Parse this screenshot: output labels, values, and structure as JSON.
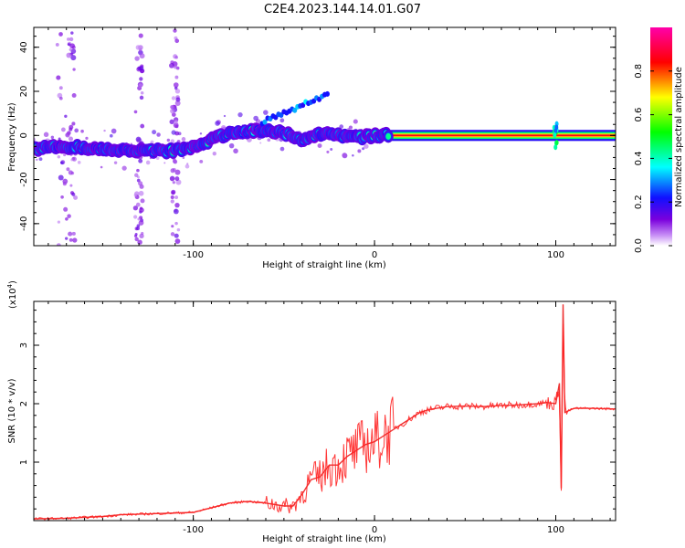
{
  "title": "C2E4.2023.144.14.01.G07",
  "colors": {
    "snr_line": "#ee3333",
    "residual_line": "#ff2222",
    "frame": "#000000"
  },
  "chart_data": [
    {
      "type": "heatmap",
      "name": "spectrogram",
      "xlabel": "Height of straight line (km)",
      "ylabel": "Frequency (Hz)",
      "xlim": [
        -188,
        133
      ],
      "ylim": [
        -50,
        49
      ],
      "xticks": [
        -100,
        0,
        100
      ],
      "xtick_labels": [
        "-100",
        "0",
        "100"
      ],
      "yticks": [
        -40,
        -20,
        0,
        20,
        40
      ],
      "ytick_labels": [
        "-40",
        "-20",
        "0",
        "20",
        "40"
      ],
      "grid": false,
      "colorbar": {
        "label": "Normalized spectral amplitude",
        "range": [
          0,
          1
        ],
        "ticks": [
          0.0,
          0.2,
          0.4,
          0.6,
          0.8
        ],
        "tick_labels": [
          "0.0",
          "0.2",
          "0.4",
          "0.6",
          "0.8"
        ],
        "colormap": "rainbow (white-violet-blue-cyan-green-yellow-red-magenta)"
      },
      "ridge": {
        "x": [
          -188,
          -170,
          -150,
          -130,
          -110,
          -100,
          -90,
          -80,
          -70,
          -60,
          -50,
          -40,
          -30,
          -20,
          -10,
          0,
          10,
          50,
          100,
          133
        ],
        "freq": [
          -6,
          -5,
          -6,
          -7,
          -7,
          -5,
          -2,
          1,
          2,
          2,
          1,
          -2,
          1,
          0,
          -1,
          0,
          0,
          0,
          0,
          0
        ]
      }
    },
    {
      "type": "line",
      "name": "snr",
      "xlabel": "Height of straight line (km)",
      "ylabel": "SNR (10 * v/v)",
      "y_multiplier_label": "(x10",
      "y_multiplier_exp": "4",
      "y_multiplier_close": ")",
      "xlim": [
        -188,
        133
      ],
      "ylim": [
        0,
        3.75
      ],
      "xticks": [
        -100,
        0,
        100
      ],
      "xtick_labels": [
        "-100",
        "0",
        "100"
      ],
      "yticks": [
        1,
        2,
        3
      ],
      "ytick_labels": [
        "1",
        "2",
        "3"
      ],
      "grid": false,
      "series": [
        {
          "x": [
            -188,
            -170,
            -150,
            -140,
            -120,
            -100,
            -90,
            -80,
            -70,
            -60,
            -50,
            -45,
            -40,
            -35,
            -30,
            -25,
            -20,
            -15,
            -10,
            -5,
            0,
            5,
            10,
            15,
            20,
            25,
            30,
            40,
            50,
            60,
            70,
            80,
            90,
            95,
            100,
            102,
            103,
            104,
            105,
            110,
            120,
            133
          ],
          "values": [
            0.03,
            0.04,
            0.07,
            0.1,
            0.12,
            0.14,
            0.22,
            0.3,
            0.33,
            0.3,
            0.25,
            0.25,
            0.45,
            0.7,
            0.75,
            0.95,
            0.95,
            1.1,
            1.2,
            1.3,
            1.35,
            1.45,
            1.55,
            1.65,
            1.75,
            1.85,
            1.9,
            1.95,
            1.96,
            1.95,
            1.97,
            1.98,
            2.0,
            2.02,
            2.0,
            2.35,
            0.55,
            3.7,
            1.85,
            1.92,
            1.92,
            1.91
          ]
        }
      ]
    }
  ]
}
